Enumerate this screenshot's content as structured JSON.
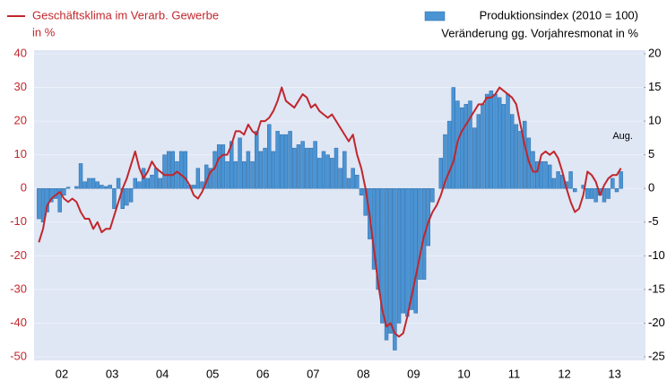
{
  "chart_data": {
    "type": "line",
    "grid": true,
    "y_label": "in %",
    "y2_label": "Veränderung gg. Vorjahresmonat in %",
    "annotation": "Aug.",
    "ylim": [
      -50,
      40
    ],
    "yticks": [
      -50,
      -40,
      -30,
      -20,
      -10,
      0,
      10,
      20,
      30,
      40
    ],
    "y2lim": [
      -25,
      20
    ],
    "y2ticks": [
      -25,
      -20,
      -15,
      -10,
      -5,
      0,
      5,
      10,
      15,
      20
    ],
    "categories": [
      null,
      null,
      null,
      null,
      null,
      "02",
      null,
      null,
      null,
      null,
      null,
      null,
      null,
      null,
      null,
      null,
      null,
      "03",
      null,
      null,
      null,
      null,
      null,
      null,
      null,
      null,
      null,
      null,
      null,
      "04",
      null,
      null,
      null,
      null,
      null,
      null,
      null,
      null,
      null,
      null,
      null,
      "05",
      null,
      null,
      null,
      null,
      null,
      null,
      null,
      null,
      null,
      null,
      null,
      "06",
      null,
      null,
      null,
      null,
      null,
      null,
      null,
      null,
      null,
      null,
      null,
      "07",
      null,
      null,
      null,
      null,
      null,
      null,
      null,
      null,
      null,
      null,
      null,
      "08",
      null,
      null,
      null,
      null,
      null,
      null,
      null,
      null,
      null,
      null,
      null,
      "09",
      null,
      null,
      null,
      null,
      null,
      null,
      null,
      null,
      null,
      null,
      null,
      "10",
      null,
      null,
      null,
      null,
      null,
      null,
      null,
      null,
      null,
      null,
      null,
      "11",
      null,
      null,
      null,
      null,
      null,
      null,
      null,
      null,
      null,
      null,
      null,
      "12",
      null,
      null,
      null,
      null,
      null,
      null,
      null,
      null,
      null,
      null,
      null,
      "13",
      null,
      null
    ],
    "series": [
      {
        "name": "Produktionsindex (2010 = 100)",
        "type": "bar",
        "axis": "y2",
        "color": "#4a94d4",
        "values": [
          -4.5,
          -5,
          -3.5,
          -2,
          -1.5,
          -3.5,
          -1,
          0.2,
          0,
          0.3,
          3.7,
          1,
          1.5,
          1.5,
          1,
          0.5,
          0.3,
          0.5,
          -3,
          1.5,
          -3,
          -2.5,
          -2,
          1.5,
          1,
          3,
          1.5,
          2,
          3,
          1.5,
          5,
          5.5,
          5.5,
          4,
          5.5,
          5.5,
          0.5,
          0.5,
          3,
          1,
          3.5,
          3,
          5.5,
          6.5,
          6.5,
          4,
          7,
          4,
          7.5,
          4,
          5.5,
          4,
          8.5,
          5.5,
          6,
          9.5,
          5.5,
          8.5,
          8,
          8,
          8.5,
          6,
          6.5,
          7,
          6,
          6,
          7,
          4.5,
          5.5,
          5,
          4.5,
          6,
          3,
          5.5,
          1.5,
          3,
          2,
          -1,
          -4,
          -7.5,
          -12,
          -15,
          -20,
          -22.5,
          -21.5,
          -24,
          -20,
          -18.5,
          -19,
          -18,
          -18.5,
          -13.5,
          -13.5,
          -8.5,
          -2,
          0,
          4.5,
          8,
          10,
          15,
          13,
          12,
          12.5,
          13,
          9,
          11,
          12.5,
          14,
          14.5,
          14,
          13.5,
          12.5,
          14,
          11,
          9.5,
          8.5,
          10,
          7.5,
          5.5,
          4,
          4,
          4,
          3.5,
          1.5,
          2.5,
          2,
          1,
          2.5,
          -0.5,
          0,
          0.5,
          -1.5,
          -1.5,
          -2,
          -1,
          -2,
          -1.5,
          1.5,
          -0.5,
          2.5
        ]
      },
      {
        "name": "Geschäftsklima im Verarb. Gewerbe",
        "type": "line",
        "color": "#c0272d",
        "values": [
          -16,
          -12,
          -5,
          -3,
          -2,
          -1,
          -3,
          -4,
          -3,
          -4,
          -7,
          -9,
          -9,
          -12,
          -10,
          -13,
          -12,
          -12,
          -8,
          -4,
          0,
          3,
          7,
          11,
          6,
          3,
          5,
          8,
          6,
          5,
          4,
          4,
          4,
          5,
          4,
          3,
          1,
          -2,
          -3,
          -1,
          2,
          5,
          6,
          9,
          10,
          10,
          13,
          17,
          17,
          16,
          19,
          17,
          16,
          20,
          20,
          21,
          23,
          26,
          30,
          26,
          25,
          24,
          26,
          28,
          27,
          24,
          25,
          23,
          22,
          21,
          22,
          20,
          18,
          16,
          14,
          16,
          10,
          6,
          0,
          -8,
          -18,
          -28,
          -36,
          -41,
          -40,
          -43,
          -44,
          -43,
          -38,
          -32,
          -26,
          -20,
          -14,
          -10,
          -7,
          -5,
          -2,
          2,
          5,
          8,
          14,
          17,
          19,
          21,
          23,
          25,
          25,
          27,
          27,
          28,
          30,
          29,
          28,
          27,
          25,
          19,
          13,
          8,
          5,
          5,
          10,
          11,
          10,
          11,
          9,
          5,
          0,
          -4,
          -7,
          -6,
          -2,
          5,
          4,
          2,
          -2,
          1,
          3,
          4,
          4,
          6
        ]
      }
    ]
  }
}
